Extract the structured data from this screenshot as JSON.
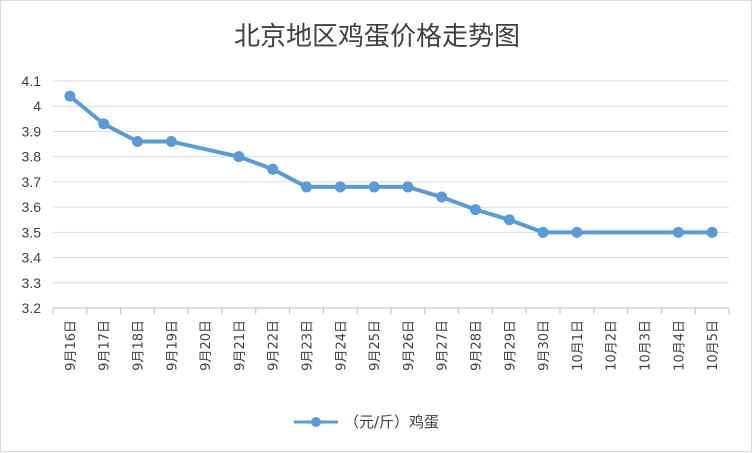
{
  "chart_data": {
    "type": "line",
    "title": "北京地区鸡蛋价格走势图",
    "xlabel": "",
    "ylabel": "",
    "categories": [
      "9月16日",
      "9月17日",
      "9月18日",
      "9月19日",
      "9月20日",
      "9月21日",
      "9月22日",
      "9月23日",
      "9月24日",
      "9月25日",
      "9月26日",
      "9月27日",
      "9月28日",
      "9月29日",
      "9月30日",
      "10月1日",
      "10月2日",
      "10月3日",
      "10月4日",
      "10月5日"
    ],
    "series": [
      {
        "name": "（元/斤）鸡蛋",
        "color": "#5b9bd5",
        "values": [
          4.04,
          3.93,
          3.86,
          3.86,
          null,
          3.8,
          3.75,
          3.68,
          3.68,
          3.68,
          3.68,
          3.64,
          3.59,
          3.55,
          3.5,
          3.5,
          null,
          null,
          3.5,
          3.5
        ]
      }
    ],
    "ylim": [
      3.2,
      4.1
    ],
    "yticks": [
      "4.1",
      "4",
      "3.9",
      "3.8",
      "3.7",
      "3.6",
      "3.5",
      "3.4",
      "3.3",
      "3.2"
    ],
    "ytick_values": [
      4.1,
      4.0,
      3.9,
      3.8,
      3.7,
      3.6,
      3.5,
      3.4,
      3.3,
      3.2
    ],
    "grid": true,
    "legend": "bottom",
    "gridline_color": "#d9d9d9",
    "axis_color": "#bfbfbf"
  }
}
